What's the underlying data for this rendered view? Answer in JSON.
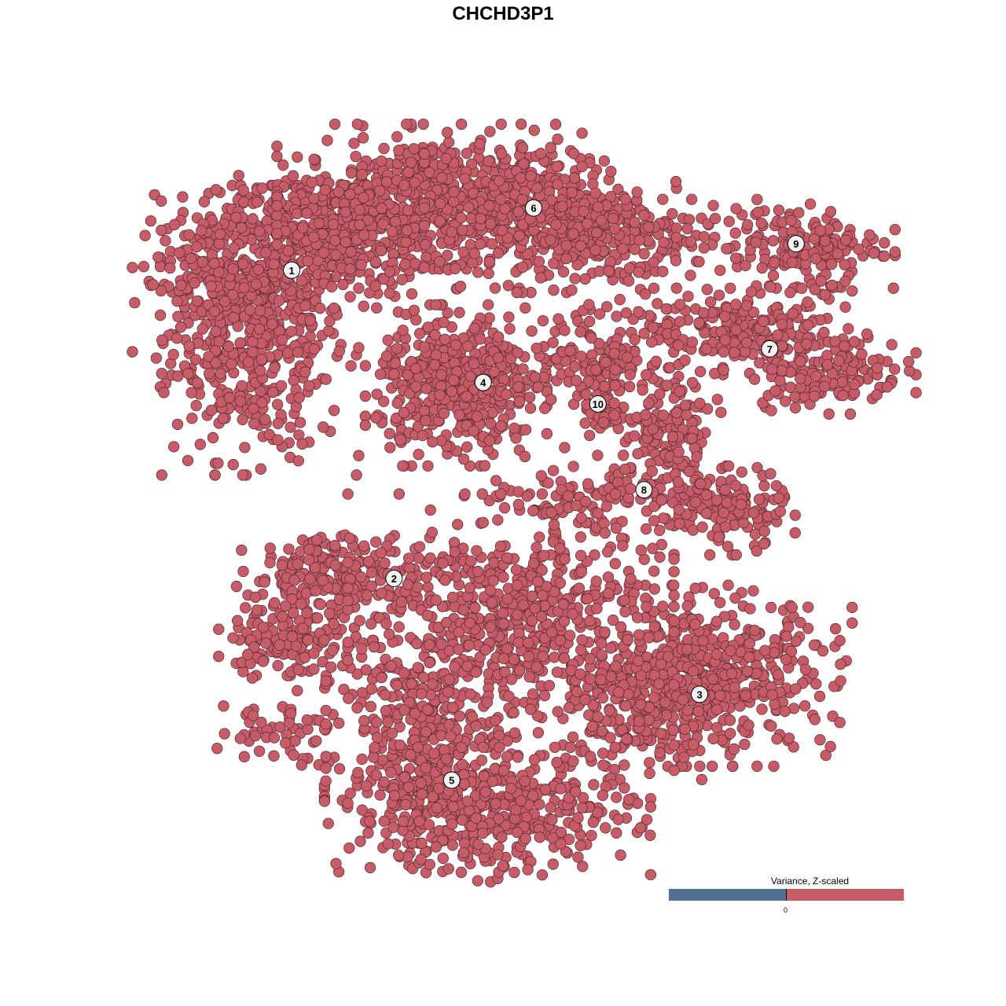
{
  "chart_data": {
    "type": "scatter",
    "title": "CHCHD3P1",
    "xlabel": "",
    "ylabel": "",
    "xlim": [
      -50,
      50
    ],
    "ylim": [
      -50,
      50
    ],
    "grid": false,
    "point_color": "#c55c67",
    "point_edge_color": "#5a2a30",
    "clusters": [
      {
        "id": "1",
        "label_pos": [
          -31.6,
          32.0
        ],
        "blobs": [
          [
            -36.0,
            23.6,
            5.9,
            8.8,
            500
          ],
          [
            -26.3,
            36.8,
            7.5,
            4.4,
            420
          ],
          [
            -43.5,
            30.2,
            4.3,
            5.5,
            150
          ]
        ]
      },
      {
        "id": "6",
        "label_pos": [
          1.5,
          40.7
        ],
        "blobs": [
          [
            -11.3,
            42.3,
            9.7,
            4.4,
            520
          ],
          [
            3.8,
            39.0,
            7.5,
            4.4,
            300
          ],
          [
            12.4,
            36.8,
            5.4,
            3.3,
            150
          ]
        ]
      },
      {
        "id": "9",
        "label_pos": [
          37.4,
          35.7
        ],
        "blobs": [
          [
            36.0,
            35.7,
            6.5,
            2.7,
            150
          ],
          [
            41.4,
            32.4,
            1.6,
            3.3,
            40
          ]
        ]
      },
      {
        "id": "7",
        "label_pos": [
          33.8,
          21.0
        ],
        "blobs": [
          [
            29.6,
            23.6,
            6.5,
            2.7,
            200
          ],
          [
            41.4,
            18.1,
            5.4,
            2.7,
            150
          ]
        ]
      },
      {
        "id": "4",
        "label_pos": [
          -5.4,
          16.3
        ],
        "blobs": [
          [
            -9.1,
            15.9,
            5.4,
            4.9,
            450
          ]
        ]
      },
      {
        "id": "10",
        "label_pos": [
          10.3,
          13.3
        ],
        "blobs": [
          [
            9.1,
            20.3,
            5.4,
            3.3,
            120
          ],
          [
            10.8,
            13.7,
            2.2,
            3.3,
            60
          ]
        ]
      },
      {
        "id": "8",
        "label_pos": [
          16.6,
          1.3
        ],
        "blobs": [
          [
            19.9,
            9.3,
            3.2,
            5.5,
            150
          ],
          [
            27.4,
            -1.6,
            4.3,
            2.7,
            150
          ],
          [
            10.2,
            -0.5,
            6.5,
            2.2,
            100
          ]
        ]
      },
      {
        "id": "2",
        "label_pos": [
          -17.6,
          -11.1
        ],
        "blobs": [
          [
            -24.2,
            -10.4,
            6.5,
            2.7,
            200
          ],
          [
            -31.7,
            -19.2,
            4.3,
            3.3,
            150
          ],
          [
            -33.9,
            -32.4,
            3.8,
            2.2,
            50
          ]
        ]
      },
      {
        "id": "3",
        "label_pos": [
          24.2,
          -27.3
        ],
        "blobs": [
          [
            25.3,
            -24.7,
            8.6,
            5.5,
            500
          ],
          [
            16.7,
            -29.1,
            4.3,
            4.4,
            150
          ]
        ]
      },
      {
        "id": "5",
        "label_pos": [
          -9.7,
          -39.3
        ],
        "blobs": [
          [
            -4.8,
            -43.4,
            9.7,
            4.4,
            500
          ],
          [
            -14.5,
            -32.4,
            5.4,
            5.5,
            250
          ],
          [
            -1.6,
            -17.0,
            9.7,
            7.7,
            600
          ]
        ]
      }
    ],
    "legend": {
      "title": "Variance, Z-scaled",
      "tick_label": "0",
      "low_color": "#516f91",
      "high_color": "#c55c67",
      "placement": "bottom-right"
    }
  }
}
